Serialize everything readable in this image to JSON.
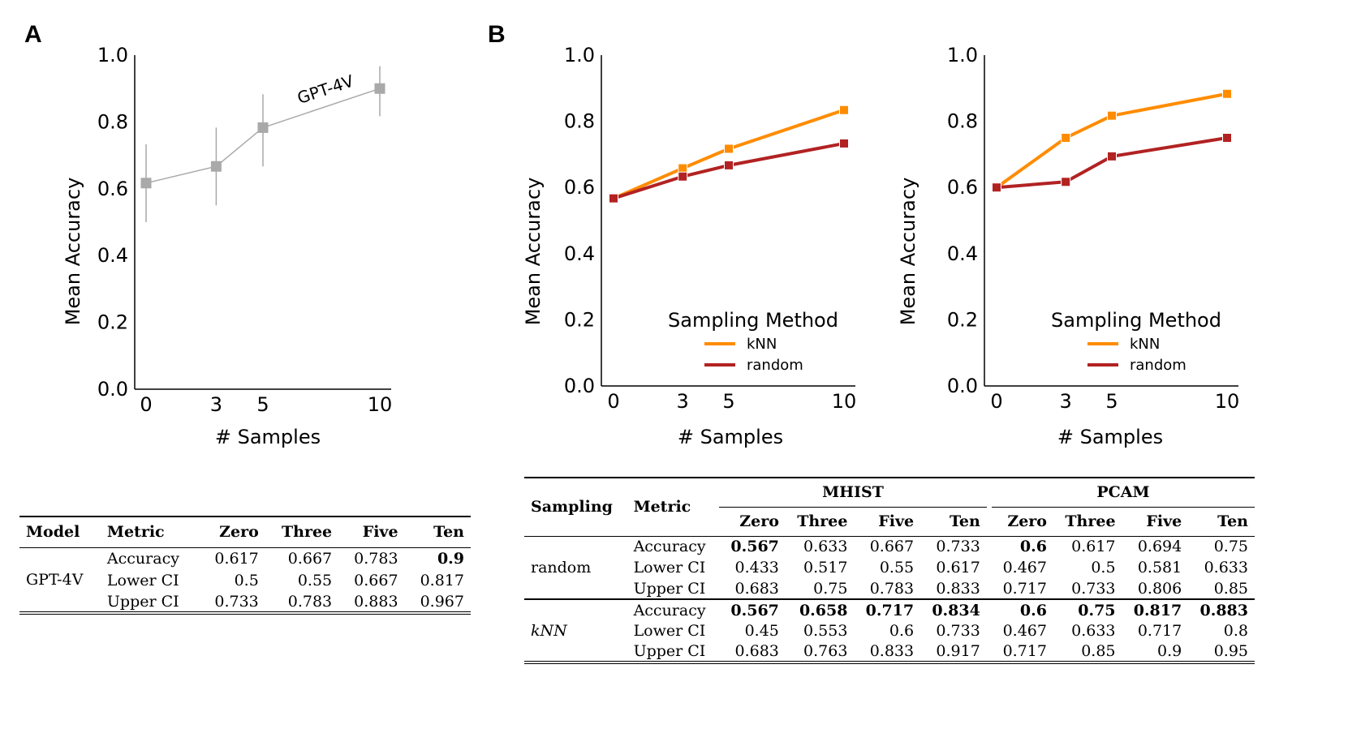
{
  "panels": {
    "a": "A",
    "b": "B"
  },
  "chart_data": [
    {
      "type": "line",
      "panel": "A",
      "xlabel": "# Samples",
      "ylabel": "Mean Accuracy",
      "xticks": [
        0,
        3,
        5,
        10
      ],
      "yticks": [
        0.0,
        0.2,
        0.4,
        0.6,
        0.8,
        1.0
      ],
      "ylim": [
        0,
        1
      ],
      "series": [
        {
          "name": "GPT-4V",
          "color": "#a9a9a9",
          "marker": "square",
          "x": [
            0,
            3,
            5,
            10
          ],
          "y": [
            0.617,
            0.667,
            0.783,
            0.9
          ],
          "lower": [
            0.5,
            0.55,
            0.667,
            0.817
          ],
          "upper": [
            0.733,
            0.783,
            0.883,
            0.967
          ]
        }
      ]
    },
    {
      "type": "line",
      "panel": "B",
      "xlabel": "# Samples",
      "ylabel": "Mean Accuracy",
      "xticks": [
        0,
        3,
        5,
        10
      ],
      "yticks": [
        0.0,
        0.2,
        0.4,
        0.6,
        0.8,
        1.0
      ],
      "ylim": [
        0,
        1
      ],
      "legend_title": "Sampling Method",
      "series": [
        {
          "name": "kNN",
          "color": "#ff8c00",
          "x": [
            0,
            3,
            5,
            10
          ],
          "y": [
            0.567,
            0.658,
            0.717,
            0.834
          ]
        },
        {
          "name": "random",
          "color": "#b22222",
          "x": [
            0,
            3,
            5,
            10
          ],
          "y": [
            0.567,
            0.633,
            0.667,
            0.733
          ]
        }
      ]
    },
    {
      "type": "line",
      "panel": "B",
      "xlabel": "# Samples",
      "ylabel": "Mean Accuracy",
      "xticks": [
        0,
        3,
        5,
        10
      ],
      "yticks": [
        0.0,
        0.2,
        0.4,
        0.6,
        0.8,
        1.0
      ],
      "ylim": [
        0,
        1
      ],
      "legend_title": "Sampling Method",
      "series": [
        {
          "name": "kNN",
          "color": "#ff8c00",
          "x": [
            0,
            3,
            5,
            10
          ],
          "y": [
            0.6,
            0.75,
            0.817,
            0.883
          ]
        },
        {
          "name": "random",
          "color": "#b22222",
          "x": [
            0,
            3,
            5,
            10
          ],
          "y": [
            0.6,
            0.617,
            0.694,
            0.75
          ]
        }
      ]
    }
  ],
  "table_a": {
    "headers": [
      "Model",
      "Metric",
      "Zero",
      "Three",
      "Five",
      "Ten"
    ],
    "model": "GPT-4V",
    "rows": [
      {
        "metric": "Accuracy",
        "values": [
          "0.617",
          "0.667",
          "0.783",
          "0.9"
        ],
        "bold": [
          false,
          false,
          false,
          true
        ]
      },
      {
        "metric": "Lower CI",
        "values": [
          "0.5",
          "0.55",
          "0.667",
          "0.817"
        ],
        "bold": [
          false,
          false,
          false,
          false
        ]
      },
      {
        "metric": "Upper CI",
        "values": [
          "0.733",
          "0.783",
          "0.883",
          "0.967"
        ],
        "bold": [
          false,
          false,
          false,
          false
        ]
      }
    ]
  },
  "table_b": {
    "headers": [
      "Sampling",
      "Metric"
    ],
    "groups": [
      "MHIST",
      "PCAM"
    ],
    "subheaders": [
      "Zero",
      "Three",
      "Five",
      "Ten",
      "Zero",
      "Three",
      "Five",
      "Ten"
    ],
    "blocks": [
      {
        "sampling": "random",
        "rows": [
          {
            "metric": "Accuracy",
            "values": [
              "0.567",
              "0.633",
              "0.667",
              "0.733",
              "0.6",
              "0.617",
              "0.694",
              "0.75"
            ],
            "bold": [
              true,
              false,
              false,
              false,
              true,
              false,
              false,
              false
            ]
          },
          {
            "metric": "Lower CI",
            "values": [
              "0.433",
              "0.517",
              "0.55",
              "0.617",
              "0.467",
              "0.5",
              "0.581",
              "0.633"
            ],
            "bold": [
              false,
              false,
              false,
              false,
              false,
              false,
              false,
              false
            ]
          },
          {
            "metric": "Upper CI",
            "values": [
              "0.683",
              "0.75",
              "0.783",
              "0.833",
              "0.717",
              "0.733",
              "0.806",
              "0.85"
            ],
            "bold": [
              false,
              false,
              false,
              false,
              false,
              false,
              false,
              false
            ]
          }
        ]
      },
      {
        "sampling": "kNN",
        "italic": true,
        "rows": [
          {
            "metric": "Accuracy",
            "values": [
              "0.567",
              "0.658",
              "0.717",
              "0.834",
              "0.6",
              "0.75",
              "0.817",
              "0.883"
            ],
            "bold": [
              true,
              true,
              true,
              true,
              true,
              true,
              true,
              true
            ]
          },
          {
            "metric": "Lower CI",
            "values": [
              "0.45",
              "0.553",
              "0.6",
              "0.733",
              "0.467",
              "0.633",
              "0.717",
              "0.8"
            ],
            "bold": [
              false,
              false,
              false,
              false,
              false,
              false,
              false,
              false
            ]
          },
          {
            "metric": "Upper CI",
            "values": [
              "0.683",
              "0.763",
              "0.833",
              "0.917",
              "0.717",
              "0.85",
              "0.9",
              "0.95"
            ],
            "bold": [
              false,
              false,
              false,
              false,
              false,
              false,
              false,
              false
            ]
          }
        ]
      }
    ]
  }
}
